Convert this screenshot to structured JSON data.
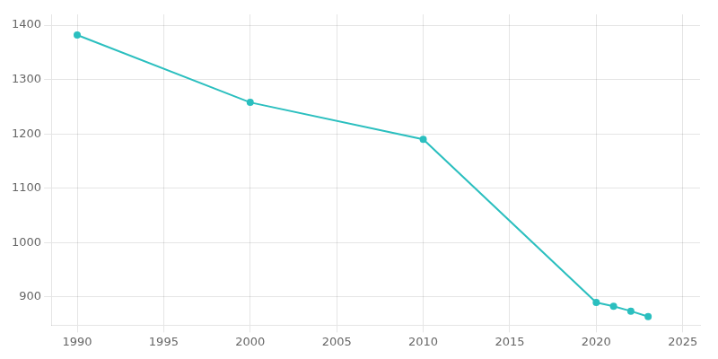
{
  "chart_data": {
    "type": "line",
    "x": [
      1990,
      2000,
      2010,
      2020,
      2021,
      2022,
      2023
    ],
    "values": [
      1382,
      1258,
      1190,
      890,
      883,
      874,
      864
    ],
    "color": "#2bbfbf",
    "marker": "o",
    "xlim": [
      1988.5,
      2026
    ],
    "ylim": [
      848,
      1420
    ],
    "xticks": [
      1990,
      1995,
      2000,
      2005,
      2010,
      2015,
      2020,
      2025
    ],
    "yticks": [
      900,
      1000,
      1100,
      1200,
      1300,
      1400
    ],
    "grid": true
  }
}
